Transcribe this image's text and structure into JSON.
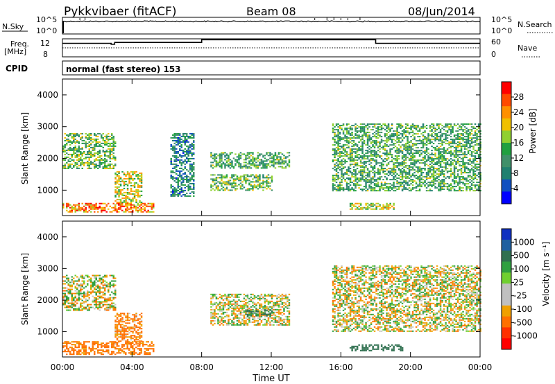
{
  "header": {
    "station": "Pykkvibaer (fitACF)",
    "beam": "Beam 08",
    "date": "08/Jun/2014"
  },
  "top_panels": {
    "nsky_label": "N.Sky",
    "nsearch_label": "N.Search",
    "nsky_ticks": [
      "10^5",
      "10^0"
    ],
    "nsearch_ticks": [
      "10^5",
      "10^0"
    ],
    "freq_label": "Freq.",
    "freq_unit": "[MHz]",
    "freq_ticks": [
      "12",
      "8"
    ],
    "nave_label": "Nave",
    "nave_ticks": [
      "60",
      "0"
    ],
    "cpid_label": "CPID",
    "cpid_text": "normal (fast stereo) 153"
  },
  "power_panel": {
    "ylabel": "Slant Range [km]",
    "cbar_label": "Power [dB]",
    "cbar_ticks": [
      "28",
      "24",
      "20",
      "16",
      "12",
      "8",
      "4"
    ],
    "cbar_colors": [
      "#ff0000",
      "#ff4a00",
      "#ff9000",
      "#f0c000",
      "#90d030",
      "#20a040",
      "#40906a",
      "#208070",
      "#1050c0",
      "#0000ff"
    ]
  },
  "velocity_panel": {
    "ylabel": "Slant Range [km]",
    "cbar_label": "Velocity [m s⁻¹]",
    "cbar_ticks": [
      "1000",
      "500",
      "100",
      "25",
      "-25",
      "-100",
      "-500",
      "-1000"
    ],
    "cbar_colors": [
      "#1030c0",
      "#2060a0",
      "#307050",
      "#30a040",
      "#70d030",
      "#c0c0c0",
      "#c0c0c0",
      "#f0a000",
      "#ff7000",
      "#ff3000",
      "#ff0000"
    ]
  },
  "y_ticks": [
    "4000",
    "3000",
    "2000",
    "1000"
  ],
  "x_ticks": [
    "00:00",
    "04:00",
    "08:00",
    "12:00",
    "16:00",
    "20:00",
    "00:00"
  ],
  "x_label": "Time UT",
  "chart_data": [
    {
      "type": "line",
      "title": "Pykkvibaer (fitACF)",
      "xlabel": "Time UT",
      "ylabel": "N.Sky / N.Search",
      "x_range_hours": [
        0,
        24
      ],
      "series": [
        {
          "name": "N.Sky",
          "x": [
            0,
            0.5,
            1,
            2,
            4,
            8,
            12,
            16,
            20,
            24
          ],
          "values": [
            1,
            100000,
            100000,
            100000,
            100000,
            100000,
            100000,
            100000,
            100000,
            100000
          ]
        }
      ]
    },
    {
      "type": "line",
      "xlabel": "Time UT",
      "ylabel": "Freq. [MHz]",
      "ylim": [
        8,
        12
      ],
      "series": [
        {
          "name": "Freq.",
          "x": [
            0,
            2.3,
            2.8,
            3.0,
            8.0,
            18.0,
            24
          ],
          "values": [
            11.0,
            11.0,
            10.8,
            11.2,
            11.8,
            11.0,
            11.0
          ]
        }
      ]
    },
    {
      "type": "heatmap",
      "title": "Beam 08",
      "xlabel": "Time UT",
      "ylabel": "Slant Range [km]",
      "xlim": [
        0,
        24
      ],
      "ylim": [
        200,
        4500
      ],
      "value": "Power [dB]",
      "zlim": [
        0,
        30
      ],
      "regions": [
        {
          "t": [
            0.0,
            5.2
          ],
          "r": [
            300,
            600
          ],
          "power": 24
        },
        {
          "t": [
            0.0,
            3.0
          ],
          "r": [
            1700,
            2800
          ],
          "power": 14
        },
        {
          "t": [
            3.0,
            4.5
          ],
          "r": [
            600,
            1600
          ],
          "power": 18
        },
        {
          "t": [
            6.2,
            7.5
          ],
          "r": [
            800,
            2800
          ],
          "power": 8
        },
        {
          "t": [
            8.5,
            13.0
          ],
          "r": [
            1700,
            2200
          ],
          "power": 12
        },
        {
          "t": [
            8.5,
            12.0
          ],
          "r": [
            1000,
            1500
          ],
          "power": 14
        },
        {
          "t": [
            15.5,
            24.0
          ],
          "r": [
            1000,
            3100
          ],
          "power": 12
        },
        {
          "t": [
            16.5,
            19.0
          ],
          "r": [
            400,
            600
          ],
          "power": 18
        }
      ]
    },
    {
      "type": "heatmap",
      "xlabel": "Time UT",
      "ylabel": "Slant Range [km]",
      "xlim": [
        0,
        24
      ],
      "ylim": [
        200,
        4500
      ],
      "value": "Velocity [m s-1]",
      "zlim": [
        -1000,
        1000
      ],
      "regions": [
        {
          "t": [
            0.0,
            5.2
          ],
          "r": [
            300,
            700
          ],
          "velocity": -200
        },
        {
          "t": [
            0.0,
            3.0
          ],
          "r": [
            1700,
            2800
          ],
          "velocity": 0
        },
        {
          "t": [
            3.0,
            4.5
          ],
          "r": [
            600,
            1600
          ],
          "velocity": -150
        },
        {
          "t": [
            8.5,
            13.0
          ],
          "r": [
            1200,
            2200
          ],
          "velocity": 0
        },
        {
          "t": [
            10.5,
            12.0
          ],
          "r": [
            1500,
            1700
          ],
          "velocity": 300
        },
        {
          "t": [
            15.5,
            24.0
          ],
          "r": [
            1000,
            3100
          ],
          "velocity": 0
        },
        {
          "t": [
            16.5,
            19.5
          ],
          "r": [
            400,
            600
          ],
          "velocity": 400
        }
      ]
    }
  ]
}
